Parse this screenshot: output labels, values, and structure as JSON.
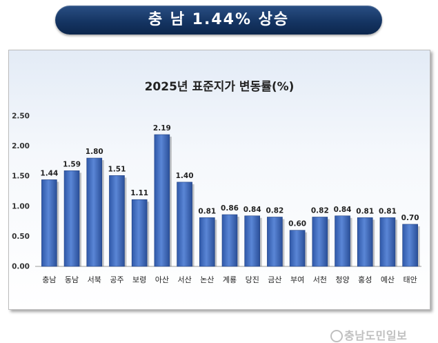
{
  "banner": {
    "text": "충 남 1.44% 상승"
  },
  "chart_data": {
    "type": "bar",
    "title": "2025년 표준지가 변동률(%)",
    "categories": [
      "충남",
      "동남",
      "서북",
      "공주",
      "보령",
      "아산",
      "서산",
      "논산",
      "계룡",
      "당진",
      "금산",
      "부여",
      "서천",
      "청양",
      "홍성",
      "예산",
      "태안"
    ],
    "values": [
      1.44,
      1.59,
      1.8,
      1.51,
      1.11,
      2.19,
      1.4,
      0.81,
      0.86,
      0.84,
      0.82,
      0.6,
      0.82,
      0.84,
      0.81,
      0.81,
      0.7
    ],
    "value_labels": [
      "1.44",
      "1.59",
      "1.80",
      "1.51",
      "1.11",
      "2.19",
      "1.40",
      "0.81",
      "0.86",
      "0.84",
      "0.82",
      "0.60",
      "0.82",
      "0.84",
      "0.81",
      "0.81",
      "0.70"
    ],
    "yticks": [
      "0.00",
      "0.50",
      "1.00",
      "1.50",
      "2.00",
      "2.50"
    ],
    "ylim": [
      0,
      2.5
    ],
    "xlabel": "",
    "ylabel": "",
    "grid": false,
    "bar_color": "#4472c4"
  },
  "watermark": {
    "text": "충남도민일보"
  }
}
